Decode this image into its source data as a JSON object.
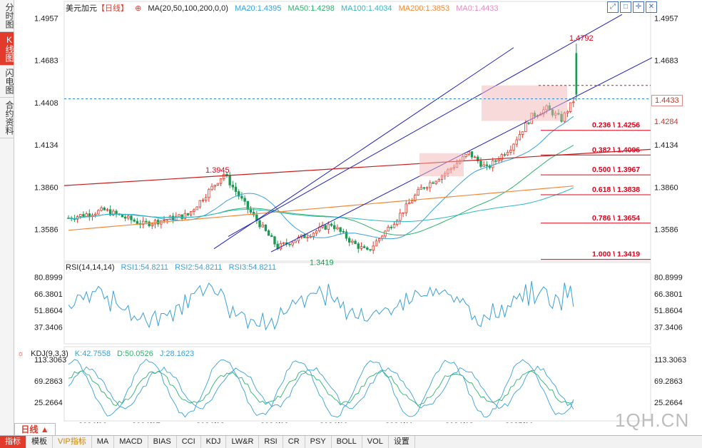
{
  "sidebar": {
    "tabs": [
      {
        "label": "分时图",
        "active": false
      },
      {
        "label": "K线图",
        "active": true
      },
      {
        "label": "闪电图",
        "active": false
      },
      {
        "label": "合约资料",
        "active": false
      }
    ]
  },
  "header": {
    "symbol": "美元加元",
    "period_tag": "【日线】",
    "ma_label": "MA(20,50,100,200,0,0)",
    "ma20": "MA20:1.4395",
    "ma50": "MA50:1.4298",
    "ma100": "MA100:1.4034",
    "ma200": "MA200:1.3853",
    "ma0": "MA0:1.4433",
    "toolbar_icons": [
      "expand-icon",
      "fullscreen-icon",
      "crosshair-icon",
      "close-icon"
    ]
  },
  "colors": {
    "up": "#e23a2b",
    "down": "#1a9b53",
    "ma20": "#3aa0d8",
    "ma50": "#2db36b",
    "ma100": "#2db8c6",
    "ma200": "#f08a3a",
    "ma0": "#e58ac0",
    "channel": "#2020c0",
    "trend": "#c81e1e",
    "fib": "#e0001a"
  },
  "main_chart": {
    "y_ticks": [
      "1.4957",
      "1.4683",
      "1.4408",
      "1.4134",
      "1.3860",
      "1.3586"
    ],
    "high_label": "1.4792",
    "low_label": "1.3419",
    "pivot_label": "1.3945",
    "current_price": "1.4433",
    "price_tag_2": "1.4284",
    "fib_levels": [
      {
        "label": "0.236 \\ 1.4256",
        "price": 1.4256
      },
      {
        "label": "0.382 \\ 1.4096",
        "price": 1.4096
      },
      {
        "label": "0.500 \\ 1.3967",
        "price": 1.3967
      },
      {
        "label": "0.618 \\ 1.3838",
        "price": 1.3838
      },
      {
        "label": "0.786 \\ 1.3654",
        "price": 1.3654
      },
      {
        "label": "1.000 \\ 1.3419",
        "price": 1.3419
      }
    ]
  },
  "rsi": {
    "title": "RSI(14,14,14)",
    "rsi1": "RSI1:54.8211",
    "rsi2": "RSI2:54.8211",
    "rsi3": "RSI3:54.8211",
    "y_ticks": [
      "80.8999",
      "66.3801",
      "51.8604",
      "37.3406"
    ]
  },
  "kdj": {
    "title": "KDJ(9,3,3)",
    "k": "K:42.7558",
    "d": "D:50.0526",
    "j": "J:28.1623",
    "y_ticks": [
      "113.3063",
      "69.2863",
      "25.2664"
    ]
  },
  "x_axis": [
    "2024/06",
    "2024/07",
    "2024/08",
    "2024/09",
    "2024/10",
    "2024/11",
    "2024/12",
    "2025/01"
  ],
  "period_button": "日线 ▲",
  "bottom_toolbar": [
    {
      "label": "指标",
      "active": true
    },
    {
      "label": "模板"
    },
    {
      "label": "VIP指标",
      "vip": true
    },
    {
      "label": "MA"
    },
    {
      "label": "MACD"
    },
    {
      "label": "BIAS"
    },
    {
      "label": "CCI"
    },
    {
      "label": "KDJ"
    },
    {
      "label": "LW&R"
    },
    {
      "label": "RSI"
    },
    {
      "label": "CR"
    },
    {
      "label": "PSY"
    },
    {
      "label": "BOLL"
    },
    {
      "label": "VOL"
    },
    {
      "label": "设置"
    }
  ],
  "watermark": "1QH.CN"
}
